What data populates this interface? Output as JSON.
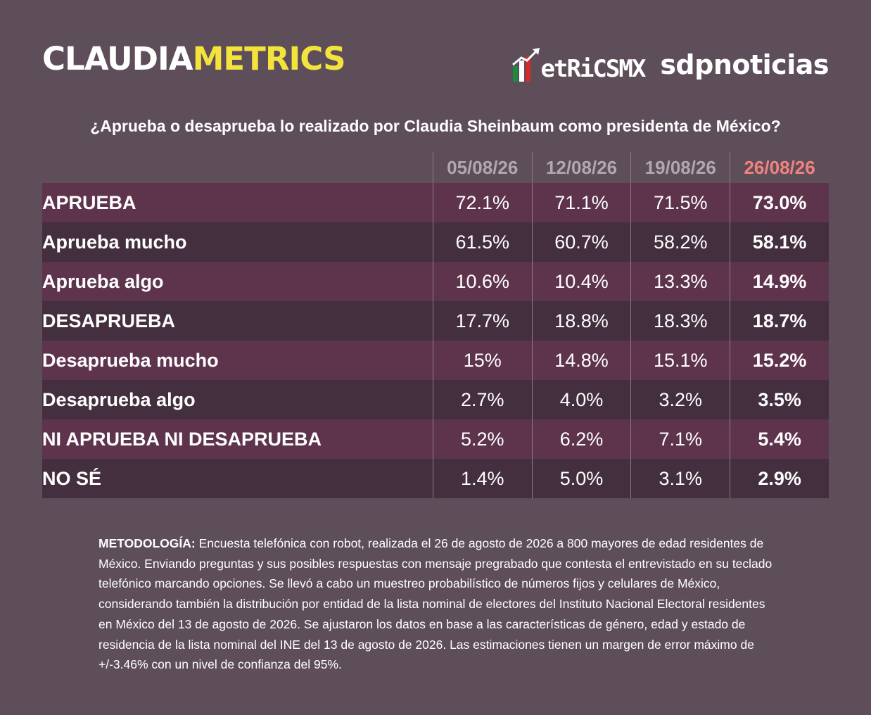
{
  "header": {
    "brand_part1": "CLAUDIA",
    "brand_part2": "METRICS",
    "partner1": "etRiCSMX",
    "partner2": "sdpnoticias"
  },
  "question": "¿Aprueba o desaprueba lo realizado por Claudia Sheinbaum como presidenta de México?",
  "chart_data": {
    "type": "table",
    "columns": [
      "05/08/26",
      "12/08/26",
      "19/08/26",
      "26/08/26"
    ],
    "rows": [
      {
        "label": "APRUEBA",
        "values": [
          "72.1%",
          "71.1%",
          "71.5%",
          "73.0%"
        ]
      },
      {
        "label": "Aprueba mucho",
        "values": [
          "61.5%",
          "60.7%",
          "58.2%",
          "58.1%"
        ]
      },
      {
        "label": "Aprueba algo",
        "values": [
          "10.6%",
          "10.4%",
          "13.3%",
          "14.9%"
        ]
      },
      {
        "label": "DESAPRUEBA",
        "values": [
          "17.7%",
          "18.8%",
          "18.3%",
          "18.7%"
        ]
      },
      {
        "label": "Desaprueba mucho",
        "values": [
          "15%",
          "14.8%",
          "15.1%",
          "15.2%"
        ]
      },
      {
        "label": "Desaprueba algo",
        "values": [
          "2.7%",
          "4.0%",
          "3.2%",
          "3.5%"
        ]
      },
      {
        "label": "NI APRUEBA NI DESAPRUEBA",
        "values": [
          "5.2%",
          "6.2%",
          "7.1%",
          "5.4%"
        ]
      },
      {
        "label": "NO SÉ",
        "values": [
          "1.4%",
          "5.0%",
          "3.1%",
          "2.9%"
        ]
      }
    ]
  },
  "methodology": {
    "title": "METODOLOGÍA:",
    "text": " Encuesta telefónica con robot, realizada el 26 de agosto de 2026 a 800 mayores de edad residentes de México. Enviando preguntas y sus posibles respuestas con mensaje pregrabado que contesta el entrevistado en su teclado telefónico marcando opciones. Se llevó a cabo un muestreo probabilístico de números fijos y celulares de México, considerando también la distribución por entidad de la lista nominal de electores del Instituto Nacional Electoral residentes en México del 13 de agosto de 2026. Se ajustaron los datos en base a las características de género, edad y estado de residencia de la lista nominal del INE del 13 de agosto de 2026. Las estimaciones tienen un margen de error máximo de +/-3.46% con un nivel de confianza del 95%."
  },
  "colors": {
    "background": "#5e4e5a",
    "row_odd": "#5e344d",
    "row_even": "#432f3d",
    "brand_accent": "#f4e33c",
    "latest_date": "#f1837f",
    "date_header": "#b1a7b0"
  }
}
